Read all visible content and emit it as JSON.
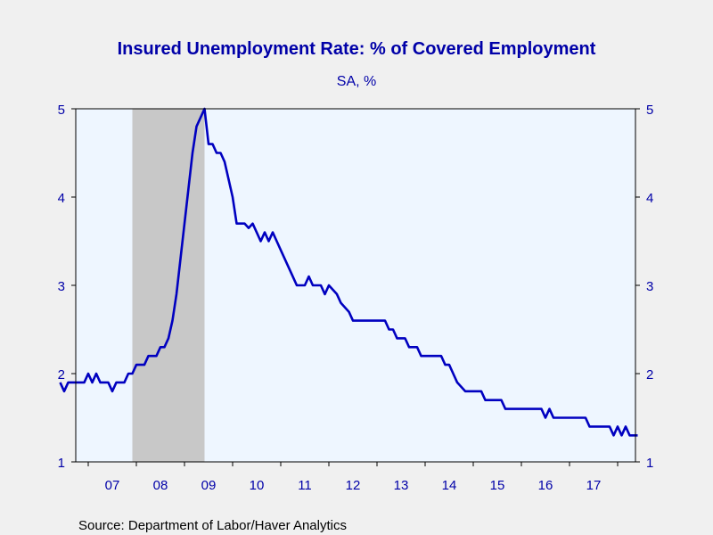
{
  "chart_data": {
    "type": "line",
    "title": "Insured Unemployment Rate: % of Covered Employment",
    "subtitle": "SA, %",
    "source": "Source:  Department of Labor/Haver Analytics",
    "x_tick_labels": [
      "07",
      "08",
      "09",
      "10",
      "11",
      "12",
      "13",
      "14",
      "15",
      "16",
      "17"
    ],
    "ylim": [
      1,
      5
    ],
    "y_ticks": [
      1,
      2,
      3,
      4,
      5
    ],
    "y_tick_labels": [
      "1",
      "2",
      "3",
      "4",
      "5"
    ],
    "grid": false,
    "legend": "none",
    "recession_shading": {
      "start": "2007-12",
      "end": "2009-06",
      "color": "#c8c8c8"
    },
    "colors": {
      "line": "#0000c0",
      "text": "#0000a8",
      "plot_bg": "#eef6ff",
      "page_bg": "#f0f0f0"
    },
    "series": [
      {
        "points": [
          [
            "2006-06",
            1.9
          ],
          [
            "2006-07",
            1.8
          ],
          [
            "2006-08",
            1.9
          ],
          [
            "2006-10",
            1.9
          ],
          [
            "2006-12",
            1.9
          ],
          [
            "2007-01",
            2.0
          ],
          [
            "2007-02",
            1.9
          ],
          [
            "2007-03",
            2.0
          ],
          [
            "2007-04",
            1.9
          ],
          [
            "2007-06",
            1.9
          ],
          [
            "2007-07",
            1.8
          ],
          [
            "2007-08",
            1.9
          ],
          [
            "2007-10",
            1.9
          ],
          [
            "2007-11",
            2.0
          ],
          [
            "2007-12",
            2.0
          ],
          [
            "2008-01",
            2.1
          ],
          [
            "2008-03",
            2.1
          ],
          [
            "2008-04",
            2.2
          ],
          [
            "2008-06",
            2.2
          ],
          [
            "2008-07",
            2.3
          ],
          [
            "2008-08",
            2.3
          ],
          [
            "2008-09",
            2.4
          ],
          [
            "2008-10",
            2.6
          ],
          [
            "2008-11",
            2.9
          ],
          [
            "2008-12",
            3.3
          ],
          [
            "2009-01",
            3.7
          ],
          [
            "2009-02",
            4.1
          ],
          [
            "2009-03",
            4.5
          ],
          [
            "2009-04",
            4.8
          ],
          [
            "2009-05",
            4.9
          ],
          [
            "2009-06",
            5.0
          ],
          [
            "2009-07",
            4.6
          ],
          [
            "2009-08",
            4.6
          ],
          [
            "2009-09",
            4.5
          ],
          [
            "2009-10",
            4.5
          ],
          [
            "2009-11",
            4.4
          ],
          [
            "2009-12",
            4.2
          ],
          [
            "2010-01",
            4.0
          ],
          [
            "2010-02",
            3.7
          ],
          [
            "2010-04",
            3.7
          ],
          [
            "2010-05",
            3.65
          ],
          [
            "2010-06",
            3.7
          ],
          [
            "2010-07",
            3.6
          ],
          [
            "2010-08",
            3.5
          ],
          [
            "2010-09",
            3.6
          ],
          [
            "2010-10",
            3.5
          ],
          [
            "2010-11",
            3.6
          ],
          [
            "2010-12",
            3.5
          ],
          [
            "2011-01",
            3.4
          ],
          [
            "2011-02",
            3.3
          ],
          [
            "2011-03",
            3.2
          ],
          [
            "2011-04",
            3.1
          ],
          [
            "2011-05",
            3.0
          ],
          [
            "2011-07",
            3.0
          ],
          [
            "2011-08",
            3.1
          ],
          [
            "2011-09",
            3.0
          ],
          [
            "2011-11",
            3.0
          ],
          [
            "2011-12",
            2.9
          ],
          [
            "2012-01",
            3.0
          ],
          [
            "2012-03",
            2.9
          ],
          [
            "2012-04",
            2.8
          ],
          [
            "2012-06",
            2.7
          ],
          [
            "2012-07",
            2.6
          ],
          [
            "2012-09",
            2.6
          ],
          [
            "2013-03",
            2.6
          ],
          [
            "2013-04",
            2.5
          ],
          [
            "2013-05",
            2.5
          ],
          [
            "2013-06",
            2.4
          ],
          [
            "2013-08",
            2.4
          ],
          [
            "2013-09",
            2.3
          ],
          [
            "2013-11",
            2.3
          ],
          [
            "2013-12",
            2.2
          ],
          [
            "2014-02",
            2.2
          ],
          [
            "2014-05",
            2.2
          ],
          [
            "2014-06",
            2.1
          ],
          [
            "2014-07",
            2.1
          ],
          [
            "2014-08",
            2.0
          ],
          [
            "2014-09",
            1.9
          ],
          [
            "2014-11",
            1.8
          ],
          [
            "2015-01",
            1.8
          ],
          [
            "2015-03",
            1.8
          ],
          [
            "2015-04",
            1.7
          ],
          [
            "2015-08",
            1.7
          ],
          [
            "2015-09",
            1.6
          ],
          [
            "2015-10",
            1.6
          ],
          [
            "2016-01",
            1.6
          ],
          [
            "2016-03",
            1.6
          ],
          [
            "2016-06",
            1.6
          ],
          [
            "2016-07",
            1.5
          ],
          [
            "2016-08",
            1.6
          ],
          [
            "2016-09",
            1.5
          ],
          [
            "2017-01",
            1.5
          ],
          [
            "2017-05",
            1.5
          ],
          [
            "2017-06",
            1.4
          ],
          [
            "2017-11",
            1.4
          ],
          [
            "2017-12",
            1.3
          ],
          [
            "2018-01",
            1.4
          ],
          [
            "2018-02",
            1.3
          ],
          [
            "2018-03",
            1.4
          ],
          [
            "2018-04",
            1.3
          ],
          [
            "2018-06",
            1.3
          ]
        ]
      }
    ]
  }
}
